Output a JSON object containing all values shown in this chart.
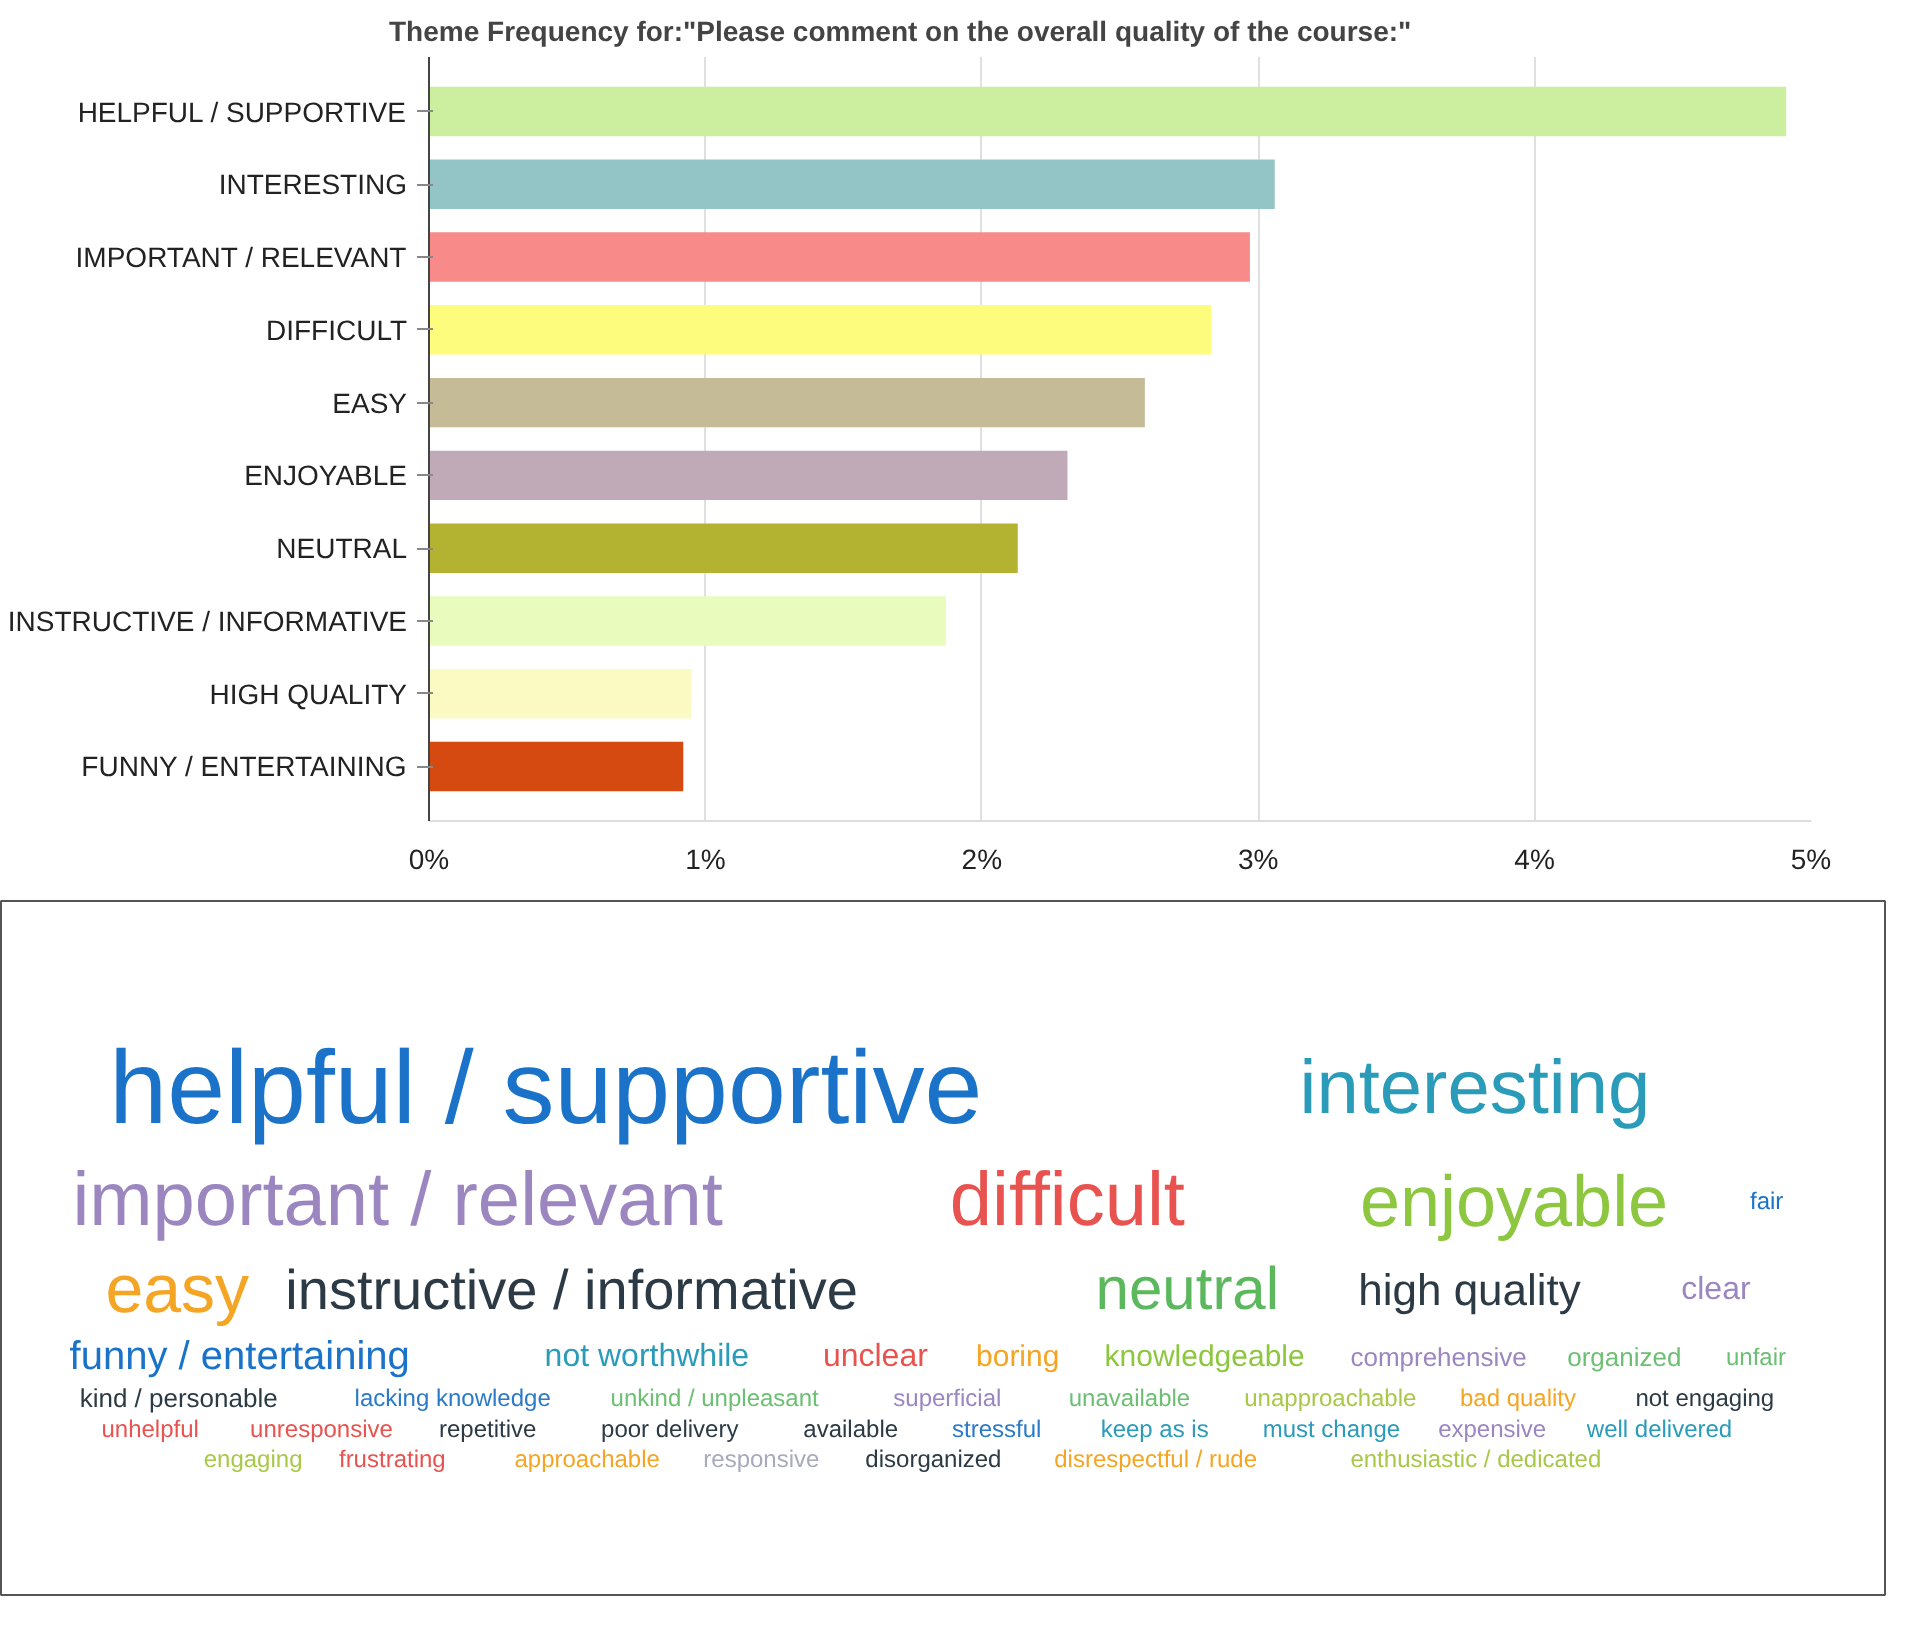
{
  "chart_data": [
    {
      "type": "bar",
      "orientation": "horizontal",
      "title": "Theme Frequency for:\"Please comment on the overall quality of the course:\"",
      "categories": [
        "HELPFUL / SUPPORTIVE",
        "INTERESTING",
        "IMPORTANT / RELEVANT",
        "DIFFICULT",
        "EASY",
        "ENJOYABLE",
        "NEUTRAL",
        "INSTRUCTIVE / INFORMATIVE",
        "HIGH QUALITY",
        "FUNNY / ENTERTAINING"
      ],
      "values": [
        4.91,
        3.06,
        2.97,
        2.83,
        2.59,
        2.31,
        2.13,
        1.87,
        0.95,
        0.92
      ],
      "colors": [
        "#ccee9f",
        "#94c5c6",
        "#f98a8a",
        "#fdfc7c",
        "#c5bc97",
        "#c0aab8",
        "#b3b331",
        "#e9fbbd",
        "#fbfac3",
        "#d44a10"
      ],
      "xlim": [
        0,
        5
      ],
      "xticks": [
        {
          "value": 0,
          "label": "0%"
        },
        {
          "value": 1,
          "label": "1%"
        },
        {
          "value": 2,
          "label": "2%"
        },
        {
          "value": 3,
          "label": "3%"
        },
        {
          "value": 4,
          "label": "4%"
        },
        {
          "value": 5,
          "label": "5%"
        }
      ],
      "grid": "x"
    },
    {
      "type": "other",
      "annotations": [
        "helpful / supportive",
        "important / relevant",
        "interesting",
        "difficult",
        "enjoyable",
        "easy",
        "instructive / informative",
        "neutral",
        "high quality",
        "funny / entertaining",
        "not worthwhile",
        "clear",
        "unclear",
        "boring",
        "knowledgeable",
        "comprehensive",
        "organized",
        "kind / personable",
        "lacking knowledge",
        "unkind / unpleasant",
        "superficial",
        "unavailable",
        "unapproachable",
        "bad quality",
        "not engaging",
        "unhelpful",
        "unresponsive",
        "repetitive",
        "poor delivery",
        "available",
        "stressful",
        "keep as is",
        "must change",
        "expensive",
        "well delivered",
        "fair",
        "engaging",
        "frustrating",
        "unfair",
        "approachable",
        "responsive",
        "disorganized",
        "disrespectful / rude",
        "enthusiastic / dedicated"
      ],
      "colors": [
        "#1a73c8",
        "#9b86c0",
        "#2a9bb8",
        "#e8534f",
        "#8dc63f",
        "#f4a523",
        "#2b3a44",
        "#5cb85c",
        "#2b3a44",
        "#1a73c8",
        "#2a9bb8",
        "#9b86c0",
        "#e8534f",
        "#f4a523",
        "#8dc63f",
        "#9b86c0",
        "#6cbf73",
        "#2b3a44",
        "#2a7ac8",
        "#6cbf73",
        "#9b86c0",
        "#6cbf73",
        "#a8c84a",
        "#f4a523",
        "#2b3a44",
        "#e8534f",
        "#e8534f",
        "#2b3a44",
        "#2b3a44",
        "#2b3a44",
        "#2a7ac8",
        "#2a9bb8",
        "#2a9bb8",
        "#9b86c0",
        "#2a9bb8",
        "#1a73c8",
        "#a8c84a",
        "#e8534f",
        "#6cbf73",
        "#f4a523",
        "#a9a9bd",
        "#2b3a44",
        "#f4a523",
        "#a8c84a"
      ]
    }
  ]
}
